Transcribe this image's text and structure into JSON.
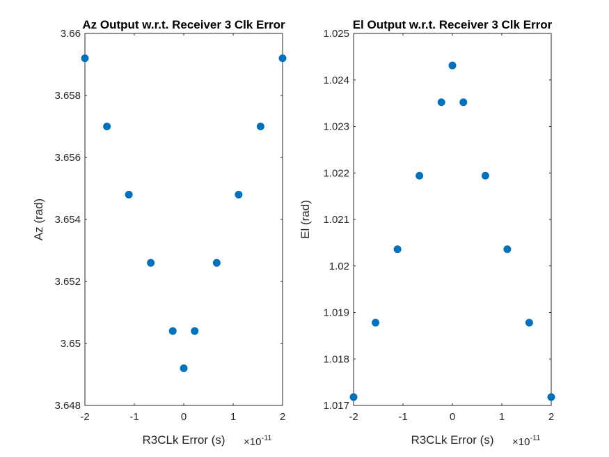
{
  "colors": {
    "marker": "#0072BD",
    "axis": "#262626",
    "background": "#ffffff"
  },
  "chart_data": [
    {
      "type": "scatter",
      "title": "Az Output w.r.t. Receiver 3 Clk Error",
      "xlabel": "R3CLk Error (s)",
      "ylabel": "Az (rad)",
      "x_multiplier_base": "×10",
      "x_multiplier_exp": "-11",
      "xlim": [
        -2,
        2
      ],
      "ylim": [
        3.648,
        3.66
      ],
      "xticks": [
        -2,
        -1,
        0,
        1,
        2
      ],
      "yticks": [
        3.648,
        3.65,
        3.652,
        3.654,
        3.656,
        3.658,
        3.66
      ],
      "xtick_labels": [
        "-2",
        "-1",
        "0",
        "1",
        "2"
      ],
      "ytick_labels": [
        "3.648",
        "3.65",
        "3.652",
        "3.654",
        "3.656",
        "3.658",
        "3.66"
      ],
      "grid": false,
      "x": [
        -2.0,
        -1.555,
        -1.111,
        -0.667,
        -0.222,
        0.0,
        0.222,
        0.667,
        1.111,
        1.555,
        2.0
      ],
      "y": [
        3.6592,
        3.657,
        3.6548,
        3.6526,
        3.6504,
        3.6492,
        3.6504,
        3.6526,
        3.6548,
        3.657,
        3.6592
      ]
    },
    {
      "type": "scatter",
      "title": "El Output w.r.t. Receiver 3 Clk Error",
      "xlabel": "R3CLk Error (s)",
      "ylabel": "El (rad)",
      "x_multiplier_base": "×10",
      "x_multiplier_exp": "-11",
      "xlim": [
        -2,
        2
      ],
      "ylim": [
        1.017,
        1.025
      ],
      "xticks": [
        -2,
        -1,
        0,
        1,
        2
      ],
      "yticks": [
        1.017,
        1.018,
        1.019,
        1.02,
        1.021,
        1.022,
        1.023,
        1.024,
        1.025
      ],
      "xtick_labels": [
        "-2",
        "-1",
        "0",
        "1",
        "2"
      ],
      "ytick_labels": [
        "1.017",
        "1.018",
        "1.019",
        "1.02",
        "1.021",
        "1.022",
        "1.023",
        "1.024",
        "1.025"
      ],
      "grid": false,
      "x": [
        -2.0,
        -1.555,
        -1.111,
        -0.667,
        -0.222,
        0.0,
        0.222,
        0.667,
        1.111,
        1.555,
        2.0
      ],
      "y": [
        1.01718,
        1.01878,
        1.02036,
        1.02194,
        1.02352,
        1.02431,
        1.02352,
        1.02194,
        1.02036,
        1.01878,
        1.01718
      ]
    }
  ]
}
